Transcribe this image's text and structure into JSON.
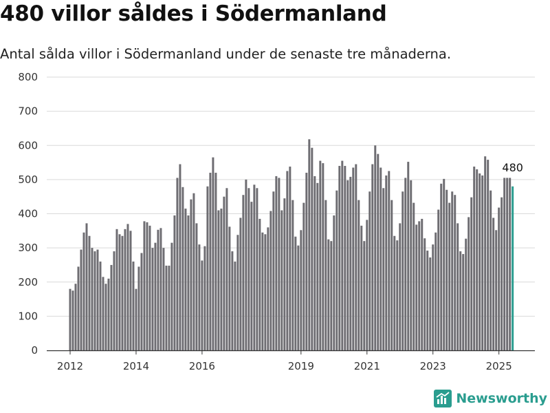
{
  "title": "480 villor såldes i Södermanland",
  "subtitle": "Antal sålda villor i Södermanland under de senaste tre månaderna.",
  "brand": {
    "name": "Newsworthy",
    "icon": "newsworthy-logo-icon"
  },
  "colors": {
    "bar": "#6e6d72",
    "highlight": "#2a9d8f",
    "grid": "#d9d9d9",
    "axis": "#333333"
  },
  "chart_data": {
    "type": "bar",
    "title": "480 villor såldes i Södermanland",
    "subtitle": "Antal sålda villor i Södermanland under de senaste tre månaderna.",
    "xlabel": "",
    "ylabel": "",
    "ylim": [
      0,
      800
    ],
    "yticks": [
      0,
      100,
      200,
      300,
      400,
      500,
      600,
      700,
      800
    ],
    "xticks": [
      "2012",
      "2014",
      "2016",
      "2019",
      "2021",
      "2023",
      "2025"
    ],
    "grid": true,
    "annotation": {
      "text": "480",
      "value": 480
    },
    "values": [
      180,
      175,
      195,
      245,
      295,
      345,
      372,
      335,
      300,
      290,
      295,
      260,
      215,
      195,
      210,
      250,
      290,
      355,
      340,
      335,
      355,
      370,
      350,
      260,
      180,
      245,
      285,
      378,
      375,
      365,
      300,
      315,
      353,
      358,
      300,
      248,
      248,
      315,
      395,
      505,
      545,
      478,
      415,
      395,
      442,
      460,
      372,
      310,
      263,
      305,
      480,
      520,
      565,
      520,
      410,
      415,
      450,
      475,
      362,
      290,
      260,
      338,
      388,
      455,
      500,
      475,
      435,
      485,
      475,
      385,
      345,
      340,
      360,
      408,
      465,
      510,
      505,
      410,
      445,
      525,
      538,
      440,
      333,
      307,
      352,
      432,
      520,
      618,
      593,
      510,
      490,
      555,
      548,
      440,
      325,
      320,
      395,
      468,
      540,
      555,
      540,
      498,
      508,
      535,
      545,
      440,
      365,
      320,
      382,
      465,
      545,
      600,
      575,
      535,
      475,
      512,
      525,
      440,
      335,
      322,
      372,
      465,
      505,
      552,
      498,
      432,
      368,
      378,
      385,
      328,
      292,
      272,
      310,
      345,
      412,
      488,
      502,
      470,
      432,
      465,
      455,
      372,
      290,
      282,
      327,
      390,
      448,
      538,
      530,
      518,
      512,
      568,
      558,
      468,
      388,
      352,
      418,
      448,
      505,
      505,
      505,
      480
    ],
    "highlight_last": true
  }
}
